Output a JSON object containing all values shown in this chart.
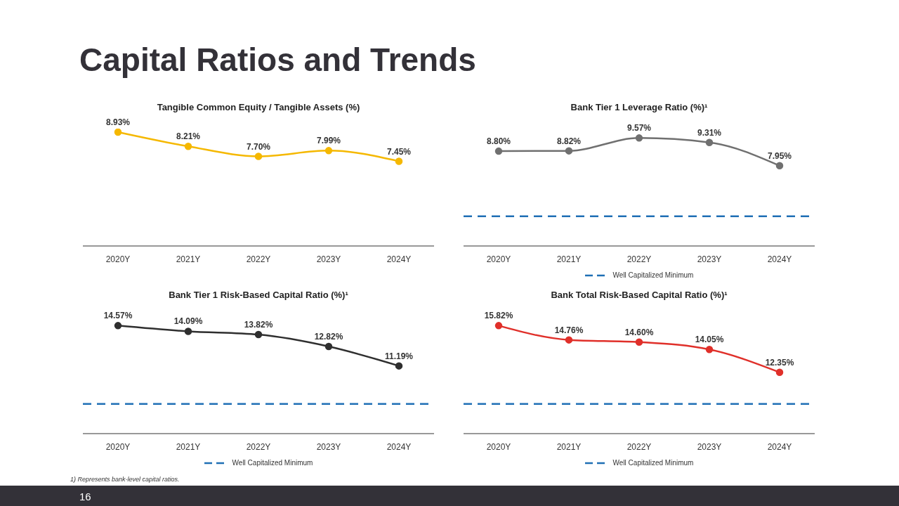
{
  "chart_data": [
    {
      "type": "line",
      "title": "Tangible Common Equity / Tangible Assets (%)",
      "categories": [
        "2020Y",
        "2021Y",
        "2022Y",
        "2023Y",
        "2024Y"
      ],
      "series": [
        {
          "color": "#f5b800",
          "values": [
            8.93,
            8.21,
            7.7,
            7.99,
            7.45
          ],
          "value_labels": [
            "8.93%",
            "8.21%",
            "7.70%",
            "7.99%",
            "7.45%"
          ]
        }
      ],
      "tick_labels": "x",
      "marker": "circle",
      "line_style": "solid",
      "legend": false,
      "annotations": [
        "Capital Ratios and Trends",
        "1) Represents bank-level capital ratios.",
        "16"
      ]
    },
    {
      "type": "line",
      "title": "Bank Tier 1 Leverage Ratio (%)¹",
      "categories": [
        "2020Y",
        "2021Y",
        "2022Y",
        "2023Y",
        "2024Y"
      ],
      "series": [
        {
          "color": "#707070",
          "values": [
            8.8,
            8.82,
            9.57,
            9.31,
            7.95
          ],
          "value_labels": [
            "8.80%",
            "8.82%",
            "9.57%",
            "9.31%",
            "7.95%"
          ]
        }
      ],
      "tick_labels": "x",
      "marker": "circle",
      "line_style": "solid",
      "legend": "bottom",
      "ref_lines": [
        {
          "axis": "y",
          "value": 5,
          "label": "Well Capitalized Minimum",
          "color": "#1f6fb5",
          "line_style": "dashed"
        }
      ]
    },
    {
      "type": "line",
      "title": "Bank Tier 1 Risk-Based Capital Ratio (%)¹",
      "categories": [
        "2020Y",
        "2021Y",
        "2022Y",
        "2023Y",
        "2024Y"
      ],
      "series": [
        {
          "color": "#2f2f2f",
          "values": [
            14.57,
            14.09,
            13.82,
            12.82,
            11.19
          ],
          "value_labels": [
            "14.57%",
            "14.09%",
            "13.82%",
            "12.82%",
            "11.19%"
          ]
        }
      ],
      "tick_labels": "x",
      "marker": "circle",
      "line_style": "solid",
      "legend": "bottom",
      "ref_lines": [
        {
          "axis": "y",
          "value": 8,
          "label": "Well Capitalized Minimum",
          "color": "#1f6fb5",
          "line_style": "dashed"
        }
      ]
    },
    {
      "type": "line",
      "title": "Bank Total Risk-Based Capital Ratio (%)¹",
      "categories": [
        "2020Y",
        "2021Y",
        "2022Y",
        "2023Y",
        "2024Y"
      ],
      "series": [
        {
          "color": "#e0302a",
          "values": [
            15.82,
            14.76,
            14.6,
            14.05,
            12.35
          ],
          "value_labels": [
            "15.82%",
            "14.76%",
            "14.60%",
            "14.05%",
            "12.35%"
          ]
        }
      ],
      "tick_labels": "x",
      "marker": "circle",
      "line_style": "solid",
      "legend": "bottom",
      "ref_lines": [
        {
          "axis": "y",
          "value": 10,
          "label": "Well Capitalized Minimum",
          "color": "#1f6fb5",
          "line_style": "dashed"
        }
      ]
    }
  ]
}
